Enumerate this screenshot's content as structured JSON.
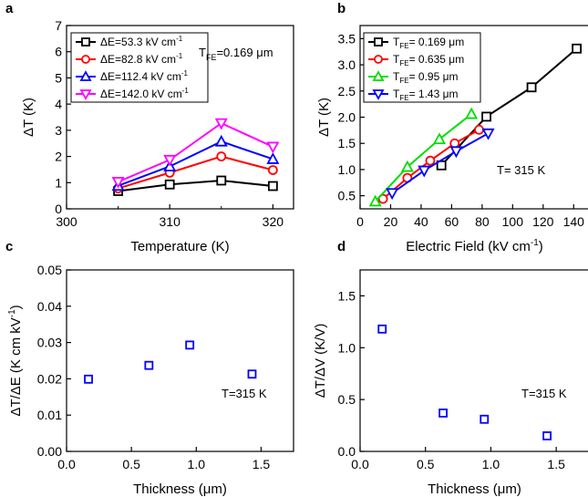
{
  "chart_data": [
    {
      "panel": "a",
      "type": "line",
      "x": [
        305,
        310,
        315,
        320
      ],
      "xlabel": "Temperature (K)",
      "ylabel": "ΔT (K)",
      "xlim": [
        300,
        322
      ],
      "ylim": [
        0,
        7
      ],
      "xticks": [
        300,
        310,
        320
      ],
      "xminor": [
        305,
        315
      ],
      "yticks": [
        0,
        1,
        2,
        3,
        4,
        5,
        6,
        7
      ],
      "annotation": {
        "main": "T",
        "sub": "FE",
        "rest": "=0.169 μm"
      },
      "legend_position": "top-left",
      "series": [
        {
          "name": "ΔE=53.3 kV cm",
          "sup": "-1",
          "color": "#000000",
          "marker": "square",
          "values": [
            0.68,
            0.93,
            1.08,
            0.87
          ]
        },
        {
          "name": "ΔE=82.8 kV cm",
          "sup": "-1",
          "color": "#ff0000",
          "marker": "circle",
          "values": [
            0.78,
            1.38,
            2.0,
            1.48
          ]
        },
        {
          "name": "ΔE=112.4 kV cm",
          "sup": "-1",
          "color": "#0000ff",
          "marker": "triangle-up",
          "values": [
            0.88,
            1.62,
            2.57,
            1.9
          ]
        },
        {
          "name": "ΔE=142.0 kV cm",
          "sup": "-1",
          "color": "#ff00ff",
          "marker": "triangle-down",
          "values": [
            1.03,
            1.87,
            3.27,
            2.37
          ]
        }
      ]
    },
    {
      "panel": "b",
      "type": "line",
      "xlabel": "Electric Field (kV cm",
      "xlabel_sup": "-1",
      "xlabel_end": ")",
      "ylabel": "ΔT (K)",
      "xlim": [
        0,
        150
      ],
      "ylim": [
        0.25,
        3.75
      ],
      "xticks": [
        0,
        20,
        40,
        60,
        80,
        100,
        120,
        140
      ],
      "yticks": [
        0.5,
        1.0,
        1.5,
        2.0,
        2.5,
        3.0,
        3.5
      ],
      "annotation": {
        "main": "T= 315 K",
        "sub": "",
        "rest": ""
      },
      "legend_position": "top-left",
      "series": [
        {
          "name": "T",
          "sub": "FE",
          "rest": "= 0.169 μm",
          "color": "#000000",
          "marker": "square",
          "points": [
            [
              53.3,
              1.08
            ],
            [
              82.8,
              2.01
            ],
            [
              112.4,
              2.57
            ],
            [
              142.0,
              3.31
            ]
          ]
        },
        {
          "name": "T",
          "sub": "FE",
          "rest": "= 0.635 μm",
          "color": "#ff0000",
          "marker": "circle",
          "points": [
            [
              15,
              0.44
            ],
            [
              31,
              0.84
            ],
            [
              46,
              1.17
            ],
            [
              62,
              1.5
            ],
            [
              78,
              1.76
            ]
          ]
        },
        {
          "name": "T",
          "sub": "FE",
          "rest": "= 0.95 μm",
          "color": "#00dd00",
          "marker": "triangle-up",
          "points": [
            [
              10,
              0.39
            ],
            [
              31,
              1.05
            ],
            [
              52,
              1.58
            ],
            [
              73,
              2.06
            ]
          ]
        },
        {
          "name": "T",
          "sub": "FE",
          "rest": "= 1.43 μm",
          "color": "#0000ff",
          "marker": "triangle-down",
          "points": [
            [
              21,
              0.55
            ],
            [
              42,
              0.98
            ],
            [
              63,
              1.35
            ],
            [
              84,
              1.69
            ]
          ]
        }
      ]
    },
    {
      "panel": "c",
      "type": "scatter",
      "xlabel": "Thickness (μm)",
      "ylabel": "ΔT/ΔE (K cm kV",
      "ylabel_sup": "-1",
      "ylabel_end": ")",
      "xlim": [
        0,
        1.75
      ],
      "ylim": [
        0,
        0.05
      ],
      "xticks": [
        0.0,
        0.5,
        1.0,
        1.5
      ],
      "yticks": [
        0.0,
        0.01,
        0.02,
        0.03,
        0.04,
        0.05
      ],
      "xtick_labels": [
        "0.0",
        "0.5",
        "1.0",
        "1.5"
      ],
      "ytick_labels": [
        "0.00",
        "0.01",
        "0.02",
        "0.03",
        "0.04",
        "0.05"
      ],
      "annotation": {
        "main": "T=315 K",
        "sub": "",
        "rest": ""
      },
      "series": [
        {
          "color": "#0000ff",
          "marker": "square",
          "points": [
            [
              0.169,
              0.0199
            ],
            [
              0.635,
              0.0237
            ],
            [
              0.95,
              0.0293
            ],
            [
              1.43,
              0.0213
            ]
          ]
        }
      ]
    },
    {
      "panel": "d",
      "type": "scatter",
      "xlabel": "Thickness (μm)",
      "ylabel": "ΔT/ΔV (K/V)",
      "xlim": [
        0,
        1.75
      ],
      "ylim": [
        0,
        1.75
      ],
      "xticks": [
        0.0,
        0.5,
        1.0,
        1.5
      ],
      "yticks": [
        0.0,
        0.5,
        1.0,
        1.5
      ],
      "xtick_labels": [
        "0.0",
        "0.5",
        "1.0",
        "1.5"
      ],
      "ytick_labels": [
        "0.0",
        "0.5",
        "1.0",
        "1.5"
      ],
      "annotation": {
        "main": "T=315 K",
        "sub": "",
        "rest": ""
      },
      "series": [
        {
          "color": "#0000ff",
          "marker": "square",
          "points": [
            [
              0.169,
              1.18
            ],
            [
              0.635,
              0.37
            ],
            [
              0.95,
              0.31
            ],
            [
              1.43,
              0.15
            ]
          ]
        }
      ]
    }
  ]
}
